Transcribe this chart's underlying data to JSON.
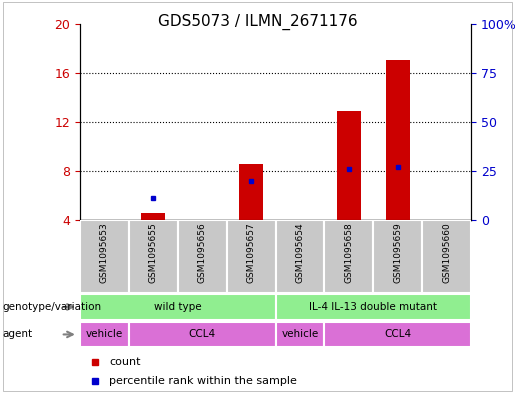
{
  "title": "GDS5073 / ILMN_2671176",
  "samples": [
    "GSM1095653",
    "GSM1095655",
    "GSM1095656",
    "GSM1095657",
    "GSM1095654",
    "GSM1095658",
    "GSM1095659",
    "GSM1095660"
  ],
  "counts": [
    4.0,
    4.6,
    4.0,
    8.6,
    4.0,
    12.9,
    17.0,
    4.0
  ],
  "percentile_ranks": [
    0,
    11,
    0,
    20,
    0,
    26,
    27,
    0
  ],
  "ylim_left": [
    4,
    20
  ],
  "ylim_right": [
    0,
    100
  ],
  "yticks_left": [
    4,
    8,
    12,
    16,
    20
  ],
  "ytick_labels_left": [
    "4",
    "8",
    "12",
    "16",
    "20"
  ],
  "yticks_right_vals": [
    0,
    25,
    50,
    75,
    100
  ],
  "ytick_labels_right": [
    "0",
    "25",
    "50",
    "75",
    "100%"
  ],
  "bar_color": "#CC0000",
  "percentile_color": "#0000CC",
  "bar_width": 0.5,
  "sample_box_color": "#C8C8C8",
  "genotype_color": "#90EE90",
  "agent_color": "#DA70D6",
  "label_color_left": "#CC0000",
  "label_color_right": "#0000CC",
  "legend_count_color": "#CC0000",
  "legend_percentile_color": "#0000CC",
  "geno_groups": [
    {
      "label": "wild type",
      "start": 0,
      "end": 4
    },
    {
      "label": "IL-4 IL-13 double mutant",
      "start": 4,
      "end": 8
    }
  ],
  "agent_groups": [
    {
      "label": "vehicle",
      "start": 0,
      "end": 1
    },
    {
      "label": "CCL4",
      "start": 1,
      "end": 4
    },
    {
      "label": "vehicle",
      "start": 4,
      "end": 5
    },
    {
      "label": "CCL4",
      "start": 5,
      "end": 8
    }
  ]
}
